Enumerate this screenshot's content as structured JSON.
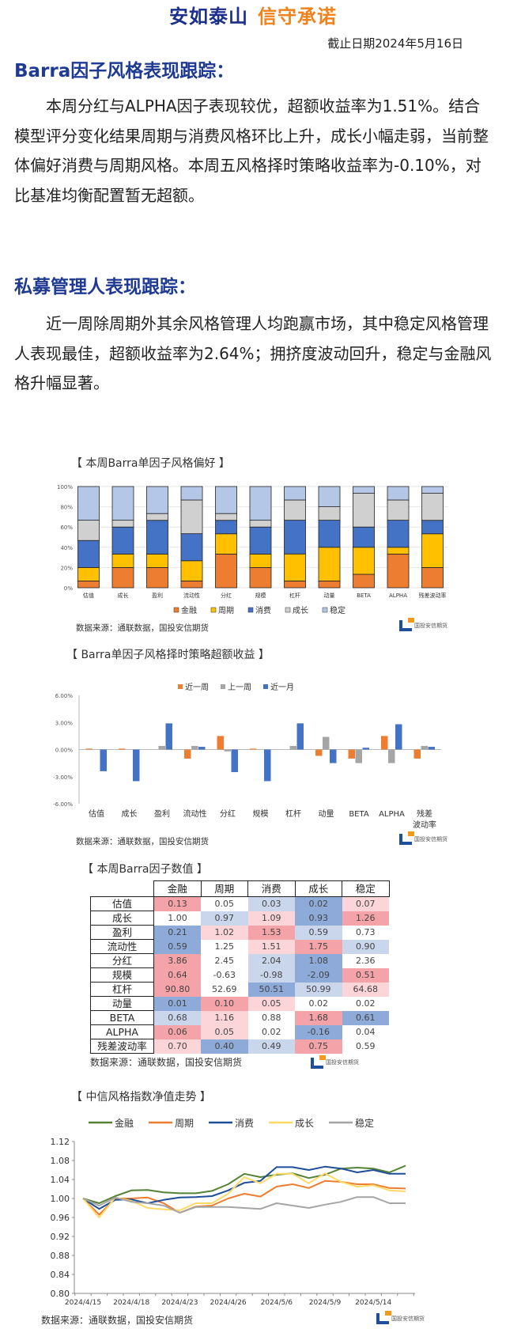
{
  "header": {
    "slogan_left": "安如泰山",
    "slogan_right": "信守承诺",
    "date": "截止日期2024年5月16日"
  },
  "section1": {
    "title": "Barra因子风格表现跟踪：",
    "body": "本周分红与ALPHA因子表现较优，超额收益率为1.51%。结合模型评分变化结果周期与消费风格环比上升，成长小幅走弱，当前整体偏好消费与周期风格。本周五风格择时策略收益率为-0.10%，对比基准均衡配置暂无超额。"
  },
  "section2": {
    "title": "私募管理人表现跟踪：",
    "body": "近一周除周期外其余风格管理人均跑赢市场，其中稳定风格管理人表现最佳，超额收益率为2.64%；拥挤度波动回升，稳定与金融风格升幅显著。"
  },
  "source": "数据来源：通联数据，国投安信期货",
  "logo_text": "国投安信期货",
  "chart_data": [
    {
      "type": "bar",
      "stacked": true,
      "title": "【 本周Barra单因子风格偏好 】",
      "categories": [
        "估值",
        "成长",
        "盈利",
        "流动性",
        "分红",
        "规模",
        "杠杆",
        "动量",
        "BETA",
        "ALPHA",
        "残差波动率"
      ],
      "yticks": [
        "0%",
        "20%",
        "40%",
        "60%",
        "80%",
        "100%"
      ],
      "ylim": [
        0,
        100
      ],
      "legend": "bottom",
      "series": [
        {
          "name": "金融",
          "color": "#ed7d31",
          "values": [
            6.7,
            20,
            20,
            6.7,
            33.3,
            20,
            6.7,
            6.7,
            13.3,
            33.3,
            20
          ]
        },
        {
          "name": "周期",
          "color": "#ffc000",
          "values": [
            13.3,
            13.3,
            13.3,
            20,
            20,
            13.3,
            26.7,
            33.3,
            26.7,
            6.7,
            33.3
          ]
        },
        {
          "name": "消费",
          "color": "#4472c4",
          "values": [
            26.7,
            26.7,
            33.3,
            26.7,
            13.3,
            26.7,
            33.3,
            26.7,
            20,
            26.7,
            13.3
          ]
        },
        {
          "name": "成长",
          "color": "#d0d0d0",
          "values": [
            20,
            6.7,
            6.7,
            33.3,
            6.7,
            6.7,
            20,
            13.3,
            33.3,
            20,
            26.7
          ]
        },
        {
          "name": "稳定",
          "color": "#b4c7e7",
          "values": [
            33.3,
            33.3,
            26.7,
            13.3,
            26.7,
            33.3,
            13.3,
            20,
            6.7,
            13.3,
            6.7
          ]
        }
      ]
    },
    {
      "type": "bar",
      "title": "【 Barra单因子风格择时策略超额收益 】",
      "categories": [
        "估值",
        "成长",
        "盈利",
        "流动性",
        "分红",
        "规模",
        "杠杆",
        "动量",
        "BETA",
        "ALPHA",
        "残差\n波动率"
      ],
      "yticks": [
        "-6.00%",
        "-3.00%",
        "0.00%",
        "3.00%",
        "6.00%"
      ],
      "ylim": [
        -6,
        6
      ],
      "legend": "top",
      "series": [
        {
          "name": "近一周",
          "color": "#ed7d31",
          "values": [
            0.1,
            0.1,
            0,
            -1.0,
            1.5,
            0.1,
            0,
            -0.7,
            -1.0,
            1.5,
            -1.0
          ]
        },
        {
          "name": "上一周",
          "color": "#a5a5a5",
          "values": [
            0,
            0,
            0.4,
            0.4,
            -0.2,
            0,
            0.4,
            1.4,
            -1.5,
            -1.5,
            0.4
          ]
        },
        {
          "name": "近一月",
          "color": "#4472c4",
          "values": [
            -2.4,
            -3.5,
            2.9,
            0.3,
            -2.5,
            -3.5,
            2.9,
            -1.5,
            0.2,
            2.8,
            0.3
          ]
        }
      ]
    },
    {
      "type": "table",
      "title": "【 本周Barra因子数值 】",
      "columns": [
        "金融",
        "周期",
        "消费",
        "成长",
        "稳定"
      ],
      "rows": [
        {
          "label": "估值",
          "values": [
            "0.13",
            "0.05",
            "0.03",
            "0.02",
            "0.07"
          ],
          "heat": [
            2,
            0,
            -1,
            -2,
            1
          ]
        },
        {
          "label": "成长",
          "values": [
            "1.00",
            "0.97",
            "1.09",
            "0.93",
            "1.26"
          ],
          "heat": [
            0,
            -1,
            1,
            -2,
            2
          ]
        },
        {
          "label": "盈利",
          "values": [
            "0.21",
            "1.02",
            "1.53",
            "0.59",
            "0.73"
          ],
          "heat": [
            -2,
            1,
            2,
            -1,
            0
          ]
        },
        {
          "label": "流动性",
          "values": [
            "0.59",
            "1.25",
            "1.51",
            "1.75",
            "0.90"
          ],
          "heat": [
            -2,
            0,
            1,
            2,
            -1
          ]
        },
        {
          "label": "分红",
          "values": [
            "3.86",
            "2.45",
            "2.04",
            "1.08",
            "2.36"
          ],
          "heat": [
            2,
            0,
            -1,
            -2,
            0
          ]
        },
        {
          "label": "规模",
          "values": [
            "0.64",
            "-0.63",
            "-0.98",
            "-2.09",
            "0.51"
          ],
          "heat": [
            2,
            0,
            -1,
            -2,
            2
          ]
        },
        {
          "label": "杠杆",
          "values": [
            "90.80",
            "52.69",
            "50.51",
            "50.99",
            "64.68"
          ],
          "heat": [
            2,
            0,
            -2,
            -1,
            1
          ]
        },
        {
          "label": "动量",
          "values": [
            "0.01",
            "0.10",
            "0.05",
            "0.02",
            "0.02"
          ],
          "heat": [
            -2,
            2,
            1,
            0,
            0
          ]
        },
        {
          "label": "BETA",
          "values": [
            "0.68",
            "1.16",
            "0.88",
            "1.68",
            "0.61"
          ],
          "heat": [
            -1,
            1,
            0,
            2,
            -2
          ]
        },
        {
          "label": "ALPHA",
          "values": [
            "0.06",
            "0.05",
            "0.02",
            "-0.16",
            "0.04"
          ],
          "heat": [
            2,
            1,
            0,
            -2,
            0
          ]
        },
        {
          "label": "残差波动率",
          "values": [
            "0.70",
            "0.40",
            "0.49",
            "0.75",
            "0.59"
          ],
          "heat": [
            1,
            -2,
            -1,
            2,
            0
          ]
        }
      ],
      "heat_colors": {
        "-2": "#8eaad8",
        "-1": "#c9d6ec",
        "0": "#ffffff",
        "1": "#fbd5d8",
        "2": "#f4a3a8"
      }
    },
    {
      "type": "line",
      "title": "【 中信风格指数净值走势 】",
      "legend": "top",
      "x": [
        "2024/4/15",
        "2024/4/16",
        "2024/4/17",
        "2024/4/18",
        "2024/4/19",
        "2024/4/22",
        "2024/4/23",
        "2024/4/24",
        "2024/4/25",
        "2024/4/26",
        "2024/4/29",
        "2024/4/30",
        "2024/5/6",
        "2024/5/7",
        "2024/5/8",
        "2024/5/9",
        "2024/5/10",
        "2024/5/13",
        "2024/5/14",
        "2024/5/15",
        "2024/5/16"
      ],
      "xtick_labels": [
        "2024/4/15",
        "2024/4/18",
        "2024/4/23",
        "2024/4/26",
        "2024/5/6",
        "2024/5/9",
        "2024/5/14"
      ],
      "yticks": [
        "0.80",
        "0.84",
        "0.88",
        "0.92",
        "0.96",
        "1.00",
        "1.04",
        "1.08",
        "1.12"
      ],
      "ylim": [
        0.8,
        1.12
      ],
      "series": [
        {
          "name": "金融",
          "color": "#548235",
          "values": [
            1.0,
            0.99,
            1.005,
            1.017,
            1.018,
            1.013,
            1.011,
            1.011,
            1.016,
            1.03,
            1.052,
            1.045,
            1.05,
            1.053,
            1.043,
            1.05,
            1.063,
            1.065,
            1.063,
            1.055,
            1.069
          ]
        },
        {
          "name": "周期",
          "color": "#ed7d31",
          "values": [
            1.0,
            0.966,
            1.0,
            1.0,
            1.002,
            0.99,
            0.97,
            0.983,
            0.985,
            1.0,
            1.01,
            1.004,
            1.025,
            1.03,
            1.022,
            1.037,
            1.035,
            1.03,
            1.03,
            1.022,
            1.021
          ]
        },
        {
          "name": "消费",
          "color": "#1f4e99",
          "values": [
            1.0,
            0.978,
            0.997,
            0.998,
            0.99,
            0.997,
            1.002,
            1.003,
            1.005,
            1.017,
            1.033,
            1.037,
            1.066,
            1.066,
            1.06,
            1.067,
            1.063,
            1.055,
            1.06,
            1.052,
            1.052
          ]
        },
        {
          "name": "成长",
          "color": "#ffd966",
          "values": [
            1.0,
            0.96,
            1.002,
            0.995,
            0.98,
            0.977,
            0.975,
            0.99,
            0.99,
            1.01,
            1.045,
            1.032,
            1.052,
            1.052,
            1.032,
            1.053,
            1.035,
            1.025,
            1.028,
            1.017,
            1.015
          ]
        },
        {
          "name": "稳定",
          "color": "#a5a5a5",
          "values": [
            1.0,
            0.985,
            1.002,
            0.993,
            0.99,
            0.985,
            0.97,
            0.982,
            0.982,
            0.982,
            0.98,
            0.978,
            0.99,
            0.985,
            0.98,
            0.987,
            0.993,
            1.003,
            1.003,
            0.99,
            0.99
          ]
        }
      ]
    }
  ]
}
